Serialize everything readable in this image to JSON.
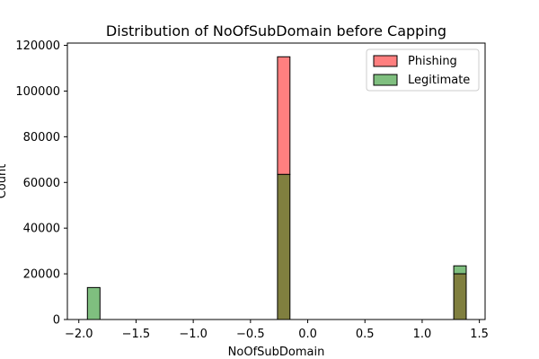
{
  "chart_data": {
    "type": "bar",
    "title": "Distribution of NoOfSubDomain before Capping",
    "xlabel": "NoOfSubDomain",
    "ylabel": "Count",
    "xlim": [
      -2.1,
      1.55
    ],
    "ylim": [
      0,
      121000
    ],
    "xticks": [
      -2.0,
      -1.5,
      -1.0,
      -0.5,
      0.0,
      0.5,
      1.0,
      1.5
    ],
    "xtick_labels": [
      "−2.0",
      "−1.5",
      "−1.0",
      "−0.5",
      "0.0",
      "0.5",
      "1.0",
      "1.5"
    ],
    "yticks": [
      0,
      20000,
      40000,
      60000,
      80000,
      100000,
      120000
    ],
    "ytick_labels": [
      "0",
      "20000",
      "40000",
      "60000",
      "80000",
      "100000",
      "120000"
    ],
    "grid": false,
    "legend_position": "top-right",
    "series": [
      {
        "name": "Phishing",
        "color": "#ff7f7f",
        "edge_color": "#000000",
        "bars": [
          {
            "x0": -0.264,
            "x1": -0.155,
            "value": 115000
          },
          {
            "x0": 1.276,
            "x1": 1.385,
            "value": 20000
          }
        ]
      },
      {
        "name": "Legitimate",
        "color": "#7fbf7f",
        "edge_color": "#000000",
        "bars": [
          {
            "x0": -1.925,
            "x1": -1.815,
            "value": 14000
          },
          {
            "x0": -0.264,
            "x1": -0.155,
            "value": 63500
          },
          {
            "x0": 1.276,
            "x1": 1.385,
            "value": 23500
          }
        ]
      }
    ],
    "overlap_color": "#807f3f"
  }
}
